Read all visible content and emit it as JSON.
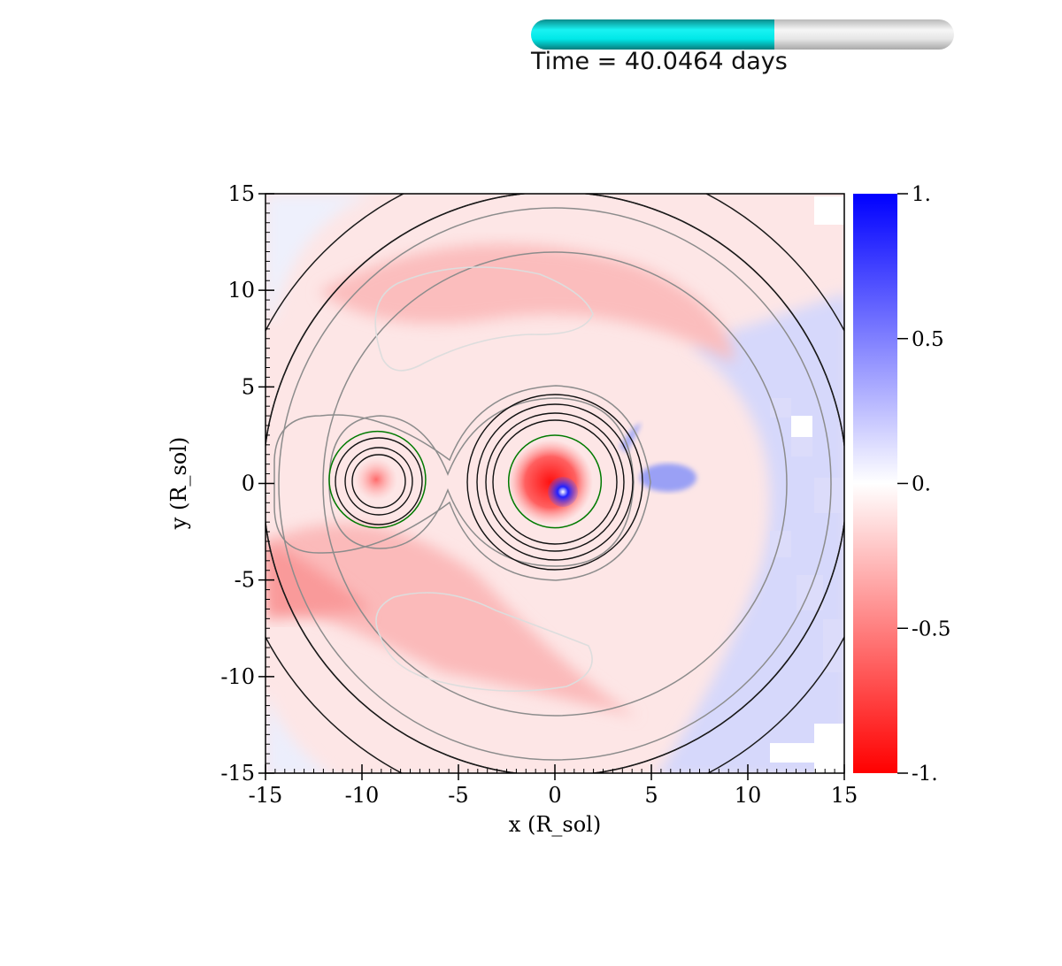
{
  "time_label": "Time = 40.0464 days",
  "progress": 0.575,
  "progress_colors": {
    "fill": "#00e5e5",
    "track": "#e0e0e0"
  },
  "chart_data": {
    "type": "heatmap",
    "title": "",
    "xlabel": "x (R_sol)",
    "ylabel": "y (R_sol)",
    "xlim": [
      -15,
      15
    ],
    "ylim": [
      -15,
      15
    ],
    "x_ticks": [
      -15,
      -10,
      -5,
      0,
      5,
      10,
      15
    ],
    "y_ticks": [
      -15,
      -10,
      -5,
      0,
      5,
      10,
      15
    ],
    "x_tick_labels": [
      "-15",
      "-10",
      "-5",
      "0",
      "5",
      "10",
      "15"
    ],
    "y_tick_labels": [
      "-15",
      "-10",
      "-5",
      "0",
      "5",
      "10",
      "15"
    ],
    "colorbar": {
      "range": [
        -1,
        1
      ],
      "ticks": [
        1,
        0.5,
        0,
        -0.5,
        -1
      ],
      "tick_labels": [
        "1.",
        "0.5",
        "0.",
        "-0.5",
        "-1."
      ],
      "colors": {
        "max": "#0000ff",
        "mid": "#ffffff",
        "min": "#ff0000"
      }
    },
    "stars": [
      {
        "x": -9.2,
        "y": 0.2,
        "roche_radius": 2.5
      },
      {
        "x": 0.0,
        "y": 0.1,
        "roche_radius": 2.4
      }
    ],
    "contour_colors": {
      "outer": "#222222",
      "inner": "#8c8c8c",
      "lobes": "#dddddd",
      "roche": "#007a00"
    }
  }
}
